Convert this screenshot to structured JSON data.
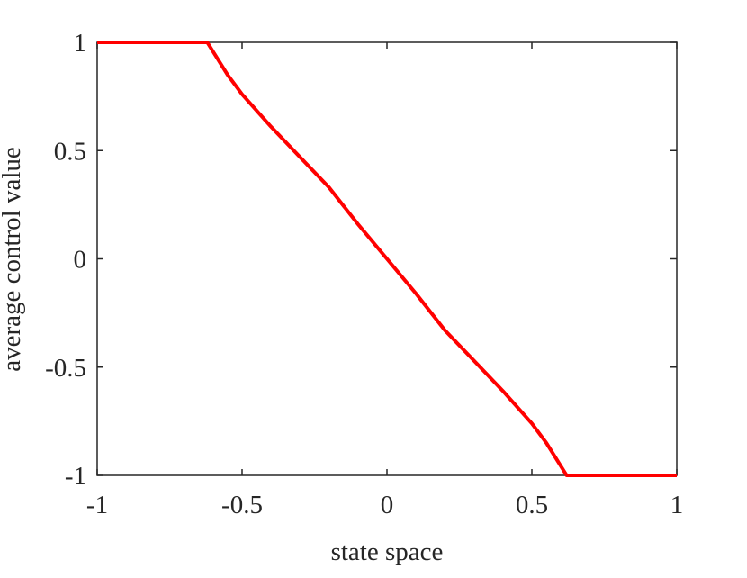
{
  "chart_data": {
    "type": "line",
    "xlabel": "state space",
    "ylabel": "average control value",
    "x": [
      -1,
      -0.62,
      -0.55,
      -0.5,
      -0.4,
      -0.3,
      -0.2,
      -0.1,
      0,
      0.1,
      0.2,
      0.3,
      0.4,
      0.5,
      0.55,
      0.62,
      1
    ],
    "series": [
      {
        "color": "#ff0000",
        "values": [
          1,
          1,
          0.85,
          0.76,
          0.61,
          0.47,
          0.33,
          0.16,
          0,
          -0.16,
          -0.33,
          -0.47,
          -0.61,
          -0.76,
          -0.85,
          -1,
          -1
        ]
      }
    ],
    "xlim": [
      -1,
      1
    ],
    "ylim": [
      -1,
      1
    ],
    "xticks": [
      -1,
      -0.5,
      0,
      0.5,
      1
    ],
    "yticks": [
      -1,
      -0.5,
      0,
      0.5,
      1
    ]
  }
}
